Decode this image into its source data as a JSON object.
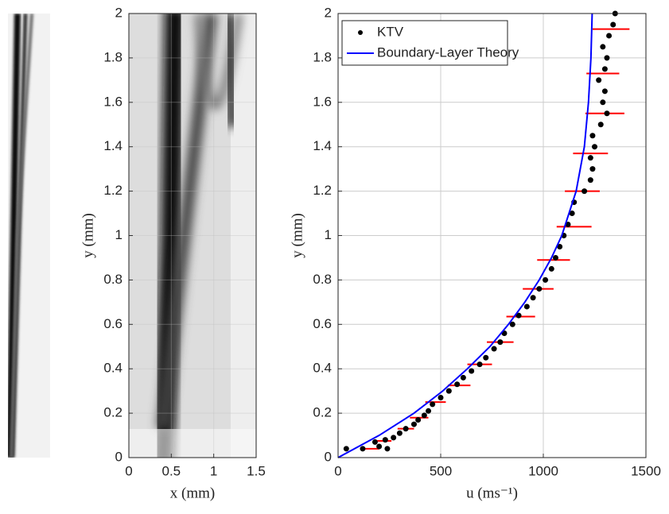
{
  "chart_data": [
    {
      "type": "image",
      "xlabel": "x (mm)",
      "ylabel": "y (mm)",
      "xlim": [
        0,
        1.5
      ],
      "ylim": [
        0,
        2
      ],
      "xticks": [
        0,
        0.5,
        1,
        1.5
      ],
      "yticks": [
        0,
        0.2,
        0.4,
        0.6,
        0.8,
        1,
        1.2,
        1.4,
        1.6,
        1.8,
        2
      ],
      "grid": true
    },
    {
      "type": "scatter",
      "xlabel": "u (ms⁻¹)",
      "ylabel": "y (mm)",
      "xlim": [
        0,
        1500
      ],
      "ylim": [
        0,
        2
      ],
      "xticks": [
        0,
        500,
        1000,
        1500
      ],
      "yticks": [
        0,
        0.2,
        0.4,
        0.6,
        0.8,
        1,
        1.2,
        1.4,
        1.6,
        1.8,
        2
      ],
      "grid": true,
      "legend": "upper left",
      "series": [
        {
          "name": "KTV",
          "color": "#000000",
          "marker": "dot",
          "x": [
            40,
            120,
            200,
            240,
            180,
            230,
            270,
            300,
            330,
            370,
            390,
            420,
            440,
            460,
            500,
            540,
            580,
            610,
            650,
            690,
            720,
            760,
            790,
            810,
            850,
            880,
            920,
            950,
            980,
            1010,
            1040,
            1060,
            1080,
            1100,
            1120,
            1140,
            1150,
            1200,
            1230,
            1240,
            1230,
            1250,
            1240,
            1280,
            1310,
            1290,
            1300,
            1270,
            1300,
            1310,
            1290,
            1320,
            1340,
            1350
          ],
          "y": [
            0.04,
            0.04,
            0.05,
            0.04,
            0.07,
            0.08,
            0.09,
            0.11,
            0.13,
            0.15,
            0.17,
            0.19,
            0.21,
            0.24,
            0.27,
            0.3,
            0.33,
            0.36,
            0.39,
            0.42,
            0.45,
            0.49,
            0.52,
            0.56,
            0.6,
            0.64,
            0.68,
            0.72,
            0.76,
            0.8,
            0.85,
            0.9,
            0.95,
            1.0,
            1.05,
            1.1,
            1.15,
            1.2,
            1.25,
            1.3,
            1.35,
            1.4,
            1.45,
            1.5,
            1.55,
            1.6,
            1.65,
            1.7,
            1.75,
            1.8,
            1.85,
            1.9,
            1.95,
            2.0
          ]
        },
        {
          "name": "Boundary-Layer Theory",
          "color": "#0000ff",
          "marker": "line",
          "x": [
            0,
            200,
            370,
            510,
            630,
            740,
            830,
            910,
            980,
            1040,
            1090,
            1160,
            1200,
            1220,
            1232,
            1238
          ],
          "y": [
            0,
            0.1,
            0.2,
            0.3,
            0.4,
            0.5,
            0.6,
            0.7,
            0.8,
            0.9,
            1.0,
            1.2,
            1.4,
            1.6,
            1.8,
            2.0
          ]
        }
      ],
      "errorbars": {
        "color": "#ff0000",
        "y": [
          1.93,
          1.73,
          1.55,
          1.37,
          1.2,
          1.04,
          0.89,
          0.76,
          0.635,
          0.52,
          0.42,
          0.325,
          0.25,
          0.18,
          0.13,
          0.075,
          0.04
        ],
        "x": [
          1330,
          1290,
          1300,
          1230,
          1190,
          1150,
          1050,
          975,
          890,
          790,
          690,
          590,
          475,
          395,
          330,
          220,
          160
        ],
        "error": [
          90,
          80,
          95,
          85,
          85,
          85,
          80,
          75,
          70,
          65,
          60,
          55,
          50,
          45,
          40,
          40,
          40
        ]
      }
    }
  ]
}
